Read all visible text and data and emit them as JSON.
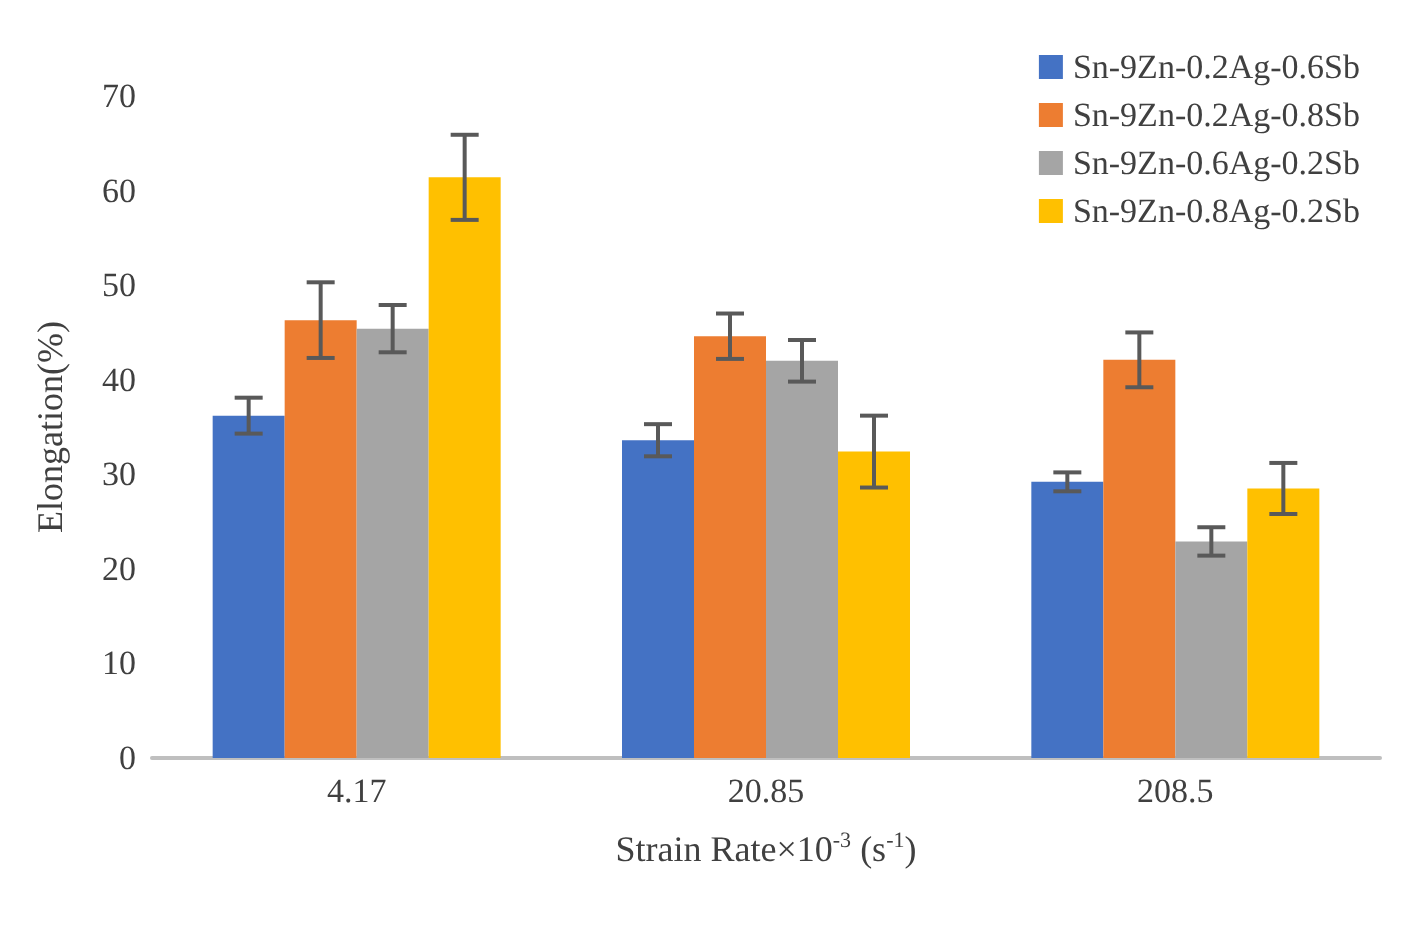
{
  "chart_data": {
    "type": "bar",
    "xlabel": "Strain Rate×10$^{-3}$ (s$^{-1}$)",
    "ylabel": "Elongation(%)",
    "categories": [
      "4.17",
      "20.85",
      "208.5"
    ],
    "series": [
      {
        "name": "Sn-9Zn-0.2Ag-0.6Sb",
        "color": "#4472c4",
        "values": [
          36.2,
          33.6,
          29.2
        ],
        "errors": [
          1.9,
          1.7,
          1.0
        ]
      },
      {
        "name": "Sn-9Zn-0.2Ag-0.8Sb",
        "color": "#ed7d31",
        "values": [
          46.3,
          44.6,
          42.1
        ],
        "errors": [
          4.0,
          2.4,
          2.9
        ]
      },
      {
        "name": "Sn-9Zn-0.6Ag-0.2Sb",
        "color": "#a5a5a5",
        "values": [
          45.4,
          42.0,
          22.9
        ],
        "errors": [
          2.5,
          2.2,
          1.5
        ]
      },
      {
        "name": "Sn-9Zn-0.8Ag-0.2Sb",
        "color": "#ffc000",
        "values": [
          61.4,
          32.4,
          28.5
        ],
        "errors": [
          4.5,
          3.8,
          2.7
        ]
      }
    ],
    "ylim": [
      0,
      70
    ],
    "yticks": [
      0,
      10,
      20,
      30,
      40,
      50,
      60,
      70
    ],
    "grid": false,
    "legend": "top right"
  }
}
